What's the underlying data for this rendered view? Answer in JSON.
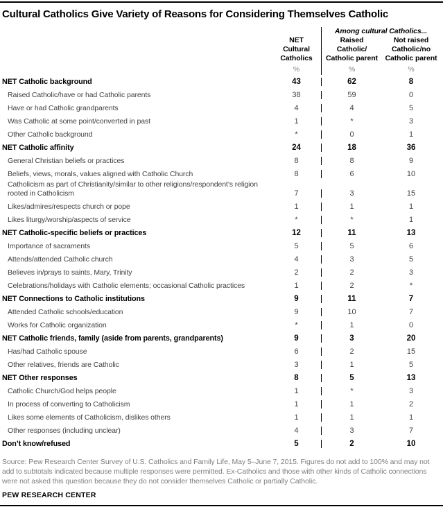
{
  "title": "Cultural Catholics Give Variety of Reasons for Considering Themselves Catholic",
  "header": {
    "col1_lines": [
      "NET",
      "Cultural",
      "Catholics"
    ],
    "group_label": "Among cultural Catholics...",
    "col2_lines": [
      "Raised",
      "Catholic/",
      "Catholic parent"
    ],
    "col3_lines": [
      "Not raised",
      "Catholic/no",
      "Catholic parent"
    ],
    "percent_symbol": "%"
  },
  "chart_data": {
    "type": "table",
    "title": "Cultural Catholics Give Variety of Reasons for Considering Themselves Catholic",
    "unit": "%",
    "columns": [
      "NET Cultural Catholics",
      "Among cultural Catholics: Raised Catholic/Catholic parent",
      "Among cultural Catholics: Not raised Catholic/no Catholic parent"
    ],
    "rows": [
      {
        "label": "NET Catholic background",
        "bold": true,
        "values": [
          "43",
          "62",
          "8"
        ]
      },
      {
        "label": "Raised Catholic/have or had Catholic parents",
        "bold": false,
        "values": [
          "38",
          "59",
          "0"
        ]
      },
      {
        "label": "Have or had Catholic grandparents",
        "bold": false,
        "values": [
          "4",
          "4",
          "5"
        ]
      },
      {
        "label": "Was Catholic at some point/converted in past",
        "bold": false,
        "values": [
          "1",
          "*",
          "3"
        ]
      },
      {
        "label": "Other Catholic background",
        "bold": false,
        "values": [
          "*",
          "0",
          "1"
        ]
      },
      {
        "label": "NET Catholic affinity",
        "bold": true,
        "values": [
          "24",
          "18",
          "36"
        ]
      },
      {
        "label": "General Christian beliefs or practices",
        "bold": false,
        "values": [
          "8",
          "8",
          "9"
        ]
      },
      {
        "label": "Beliefs, views, morals, values aligned with Catholic Church",
        "bold": false,
        "values": [
          "8",
          "6",
          "10"
        ]
      },
      {
        "label": "Catholicism as part of Christianity/similar to other religions/respondent’s religion rooted in Catholicism",
        "bold": false,
        "values": [
          "7",
          "3",
          "15"
        ]
      },
      {
        "label": "Likes/admires/respects church or pope",
        "bold": false,
        "values": [
          "1",
          "1",
          "1"
        ]
      },
      {
        "label": "Likes liturgy/worship/aspects of service",
        "bold": false,
        "values": [
          "*",
          "*",
          "1"
        ]
      },
      {
        "label": "NET Catholic-specific beliefs or practices",
        "bold": true,
        "values": [
          "12",
          "11",
          "13"
        ]
      },
      {
        "label": "Importance of sacraments",
        "bold": false,
        "values": [
          "5",
          "5",
          "6"
        ]
      },
      {
        "label": "Attends/attended Catholic church",
        "bold": false,
        "values": [
          "4",
          "3",
          "5"
        ]
      },
      {
        "label": "Believes in/prays to saints, Mary, Trinity",
        "bold": false,
        "values": [
          "2",
          "2",
          "3"
        ]
      },
      {
        "label": "Celebrations/holidays with Catholic elements; occasional Catholic practices",
        "bold": false,
        "values": [
          "1",
          "2",
          "*"
        ]
      },
      {
        "label": "NET Connections to Catholic institutions",
        "bold": true,
        "values": [
          "9",
          "11",
          "7"
        ]
      },
      {
        "label": "Attended Catholic schools/education",
        "bold": false,
        "values": [
          "9",
          "10",
          "7"
        ]
      },
      {
        "label": "Works for Catholic organization",
        "bold": false,
        "values": [
          "*",
          "1",
          "0"
        ]
      },
      {
        "label": "NET Catholic friends, family (aside from parents, grandparents)",
        "bold": true,
        "values": [
          "9",
          "3",
          "20"
        ]
      },
      {
        "label": "Has/had Catholic spouse",
        "bold": false,
        "values": [
          "6",
          "2",
          "15"
        ]
      },
      {
        "label": "Other relatives, friends are Catholic",
        "bold": false,
        "values": [
          "3",
          "1",
          "5"
        ]
      },
      {
        "label": "NET Other responses",
        "bold": true,
        "values": [
          "8",
          "5",
          "13"
        ]
      },
      {
        "label": "Catholic Church/God helps people",
        "bold": false,
        "values": [
          "1",
          "*",
          "3"
        ]
      },
      {
        "label": "In process of converting to Catholicism",
        "bold": false,
        "values": [
          "1",
          "1",
          "2"
        ]
      },
      {
        "label": "Likes some elements of Catholicism, dislikes others",
        "bold": false,
        "values": [
          "1",
          "1",
          "1"
        ]
      },
      {
        "label": "Other responses (including unclear)",
        "bold": false,
        "values": [
          "4",
          "3",
          "7"
        ]
      },
      {
        "label": "Don’t know/refused",
        "bold": true,
        "values": [
          "5",
          "2",
          "10"
        ]
      }
    ]
  },
  "footer": {
    "source": "Source: Pew Research Center Survey of U.S. Catholics and Family Life, May 5–June 7, 2015. Figures do not add to 100% and may not add to subtotals indicated because multiple responses were permitted. Ex-Catholics and those with other kinds of Catholic connections were not asked this question because they do not consider themselves Catholic or partially Catholic.",
    "brand": "PEW RESEARCH CENTER"
  }
}
